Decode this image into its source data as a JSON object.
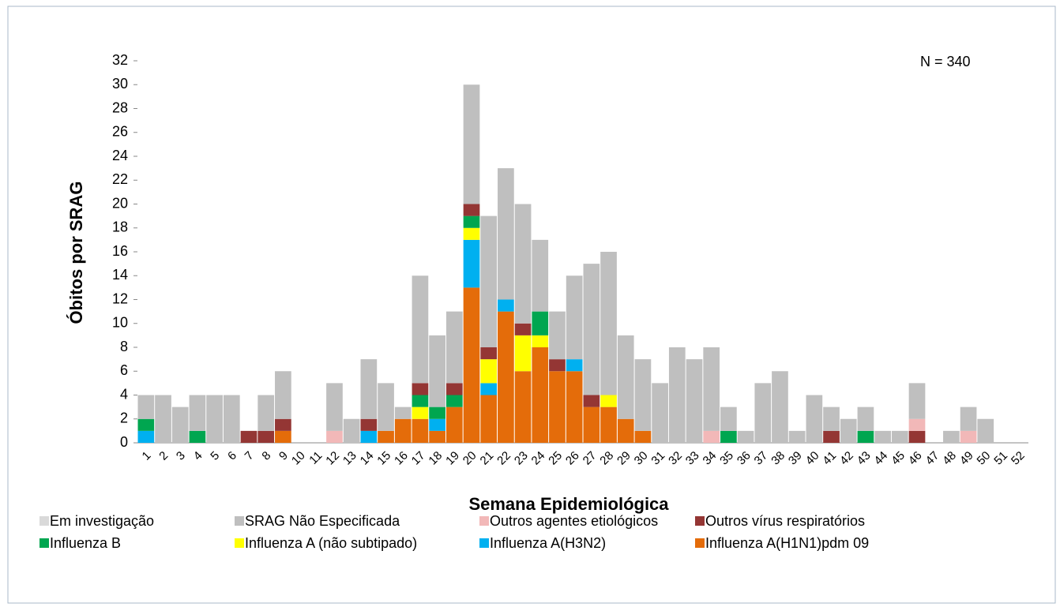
{
  "chart_data": {
    "type": "stacked-bar",
    "x_label": "Semana Epidemiológica",
    "y_label": "Óbitos por SRAG",
    "annotation": "N = 340",
    "categories": [
      "1",
      "2",
      "3",
      "4",
      "5",
      "6",
      "7",
      "8",
      "9",
      "10",
      "11",
      "12",
      "13",
      "14",
      "15",
      "16",
      "17",
      "18",
      "19",
      "20",
      "21",
      "22",
      "23",
      "24",
      "25",
      "26",
      "27",
      "28",
      "29",
      "30",
      "31",
      "32",
      "33",
      "34",
      "35",
      "36",
      "37",
      "38",
      "39",
      "40",
      "41",
      "42",
      "43",
      "44",
      "45",
      "46",
      "47",
      "48",
      "49",
      "50",
      "51",
      "52"
    ],
    "ylim": [
      0,
      32
    ],
    "yticks": [
      0,
      2,
      4,
      6,
      8,
      10,
      12,
      14,
      16,
      18,
      20,
      22,
      24,
      26,
      28,
      30,
      32
    ],
    "series": [
      {
        "name": "Influenza A(H1N1)pdm 09",
        "color": "#e46c0a",
        "values": [
          0,
          0,
          0,
          0,
          0,
          0,
          0,
          0,
          1,
          0,
          0,
          0,
          0,
          0,
          1,
          2,
          2,
          1,
          3,
          13,
          4,
          11,
          6,
          8,
          6,
          6,
          3,
          3,
          2,
          1,
          0,
          0,
          0,
          0,
          0,
          0,
          0,
          0,
          0,
          0,
          0,
          0,
          0,
          0,
          0,
          0,
          0,
          0,
          0,
          0,
          0,
          0
        ]
      },
      {
        "name": "Influenza A(H3N2)",
        "color": "#00b0f0",
        "values": [
          1,
          0,
          0,
          0,
          0,
          0,
          0,
          0,
          0,
          0,
          0,
          0,
          0,
          1,
          0,
          0,
          0,
          1,
          0,
          4,
          1,
          1,
          0,
          0,
          0,
          1,
          0,
          0,
          0,
          0,
          0,
          0,
          0,
          0,
          0,
          0,
          0,
          0,
          0,
          0,
          0,
          0,
          0,
          0,
          0,
          0,
          0,
          0,
          0,
          0,
          0,
          0
        ]
      },
      {
        "name": "Influenza A  (não subtipado)",
        "color": "#ffff00",
        "values": [
          0,
          0,
          0,
          0,
          0,
          0,
          0,
          0,
          0,
          0,
          0,
          0,
          0,
          0,
          0,
          0,
          1,
          0,
          0,
          1,
          2,
          0,
          3,
          1,
          0,
          0,
          0,
          1,
          0,
          0,
          0,
          0,
          0,
          0,
          0,
          0,
          0,
          0,
          0,
          0,
          0,
          0,
          0,
          0,
          0,
          0,
          0,
          0,
          0,
          0,
          0,
          0
        ]
      },
      {
        "name": "Influenza B",
        "color": "#00a650",
        "values": [
          1,
          0,
          0,
          1,
          0,
          0,
          0,
          0,
          0,
          0,
          0,
          0,
          0,
          0,
          0,
          0,
          1,
          1,
          1,
          1,
          0,
          0,
          0,
          2,
          0,
          0,
          0,
          0,
          0,
          0,
          0,
          0,
          0,
          0,
          1,
          0,
          0,
          0,
          0,
          0,
          0,
          0,
          1,
          0,
          0,
          0,
          0,
          0,
          0,
          0,
          0,
          0
        ]
      },
      {
        "name": "Outros vírus respiratórios",
        "color": "#943634",
        "values": [
          0,
          0,
          0,
          0,
          0,
          0,
          1,
          1,
          1,
          0,
          0,
          0,
          0,
          1,
          0,
          0,
          1,
          0,
          1,
          1,
          1,
          0,
          1,
          0,
          1,
          0,
          1,
          0,
          0,
          0,
          0,
          0,
          0,
          0,
          0,
          0,
          0,
          0,
          0,
          0,
          1,
          0,
          0,
          0,
          0,
          1,
          0,
          0,
          0,
          0,
          0,
          0
        ]
      },
      {
        "name": "Outros agentes etiológicos",
        "color": "#f2b8b8",
        "values": [
          0,
          0,
          0,
          0,
          0,
          0,
          0,
          0,
          0,
          0,
          0,
          1,
          0,
          0,
          0,
          0,
          0,
          0,
          0,
          0,
          0,
          0,
          0,
          0,
          0,
          0,
          0,
          0,
          0,
          0,
          0,
          0,
          0,
          1,
          0,
          0,
          0,
          0,
          0,
          0,
          0,
          0,
          0,
          0,
          0,
          1,
          0,
          0,
          1,
          0,
          0,
          0
        ]
      },
      {
        "name": "SRAG Não Especificada",
        "color": "#bfbfbf",
        "values": [
          2,
          4,
          3,
          3,
          4,
          4,
          0,
          3,
          4,
          0,
          0,
          4,
          2,
          5,
          4,
          1,
          9,
          6,
          6,
          10,
          11,
          11,
          10,
          6,
          4,
          7,
          11,
          12,
          7,
          6,
          5,
          8,
          7,
          7,
          2,
          1,
          5,
          6,
          1,
          4,
          2,
          2,
          2,
          1,
          1,
          3,
          0,
          1,
          2,
          2,
          0,
          0
        ]
      },
      {
        "name": "Em investigação",
        "color": "#d9d9d9",
        "values": [
          0,
          0,
          0,
          0,
          0,
          0,
          0,
          0,
          0,
          0,
          0,
          0,
          0,
          0,
          0,
          0,
          0,
          0,
          0,
          0,
          0,
          0,
          0,
          0,
          0,
          0,
          0,
          0,
          0,
          0,
          0,
          0,
          0,
          0,
          0,
          0,
          0,
          0,
          0,
          0,
          0,
          0,
          0,
          0,
          0,
          0,
          0,
          0,
          0,
          0,
          0,
          0
        ]
      }
    ]
  }
}
